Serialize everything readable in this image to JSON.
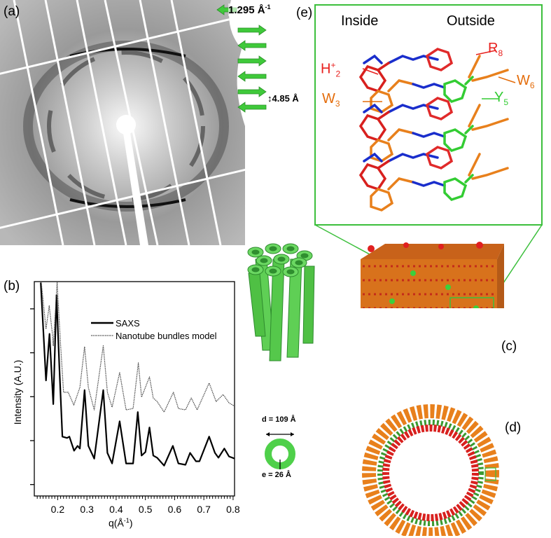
{
  "panels": {
    "a": {
      "label": "(a)",
      "spacing_label_1": "1.295 Å",
      "spacing_label_1_sup": "-1",
      "spacing_label_2": "4.85 Å"
    },
    "b": {
      "label": "(b)"
    },
    "c": {
      "label": "(c)"
    },
    "d": {
      "label": "(d)"
    },
    "e": {
      "label": "(e)",
      "inside": "Inside",
      "outside": "Outside",
      "residues": [
        {
          "name": "H",
          "sup": "+",
          "sub": "2",
          "color": "#e8201e"
        },
        {
          "name": "W",
          "sup": "",
          "sub": "3",
          "color": "#e46c0a"
        },
        {
          "name": "R",
          "sup": "",
          "sub": "8",
          "color": "#e8201e"
        },
        {
          "name": "W",
          "sup": "",
          "sub": "6",
          "color": "#e46c0a"
        },
        {
          "name": "Y",
          "sup": "",
          "sub": "5",
          "color": "#33cc33"
        }
      ]
    },
    "tube": {
      "diameter_label": "d = 109 Å",
      "thickness_label": "e = 26 Å"
    }
  },
  "colors": {
    "green": "#4fd04a",
    "frame_green": "#3cbf3c",
    "orange": "#e8801c",
    "red": "#d8201e",
    "blue": "#1a2ecc"
  },
  "chart_data": {
    "type": "line",
    "xlabel": "q(Å",
    "xlabel_sup": "-1",
    "xlabel_close": ")",
    "ylabel": "Intensity (A.U.)",
    "xlim": [
      0.12,
      0.805
    ],
    "ylim": [
      0.74,
      5.62
    ],
    "xticks": [
      0.2,
      0.3,
      0.4,
      0.5,
      0.6,
      0.7,
      0.8
    ],
    "xtick_labels": [
      "0.2",
      "0.3",
      "0.4",
      "0.5",
      "0.6",
      "0.7",
      "0.8"
    ],
    "yticks_unlabeled": [
      1,
      2,
      3,
      4,
      5
    ],
    "legend_position": "top-right",
    "series": [
      {
        "name": "SAXS",
        "style": "solid",
        "x": [
          0.142,
          0.16,
          0.172,
          0.185,
          0.196,
          0.206,
          0.216,
          0.232,
          0.24,
          0.256,
          0.268,
          0.276,
          0.292,
          0.305,
          0.325,
          0.356,
          0.37,
          0.386,
          0.412,
          0.434,
          0.458,
          0.474,
          0.487,
          0.5,
          0.514,
          0.527,
          0.54,
          0.564,
          0.594,
          0.613,
          0.637,
          0.653,
          0.673,
          0.685,
          0.718,
          0.738,
          0.75,
          0.77,
          0.786,
          0.806
        ],
        "y": [
          5.6,
          3.37,
          4.43,
          2.83,
          5.31,
          3.63,
          2.09,
          2.06,
          2.09,
          1.77,
          1.88,
          1.82,
          3.15,
          1.88,
          1.59,
          3.15,
          1.72,
          1.48,
          2.44,
          1.48,
          1.48,
          2.65,
          1.66,
          1.74,
          2.3,
          1.66,
          1.61,
          1.43,
          1.88,
          1.48,
          1.45,
          1.72,
          1.53,
          1.53,
          2.09,
          1.72,
          1.61,
          1.82,
          1.64,
          1.59
        ]
      },
      {
        "name": "Nanotube bundles model",
        "style": "dotted",
        "x": [
          0.144,
          0.16,
          0.171,
          0.181,
          0.185,
          0.198,
          0.21,
          0.22,
          0.236,
          0.255,
          0.276,
          0.292,
          0.305,
          0.325,
          0.356,
          0.37,
          0.386,
          0.412,
          0.434,
          0.458,
          0.476,
          0.487,
          0.514,
          0.527,
          0.54,
          0.564,
          0.596,
          0.613,
          0.637,
          0.657,
          0.677,
          0.718,
          0.742,
          0.766,
          0.786,
          0.806
        ],
        "y": [
          5.6,
          4.54,
          5.07,
          4.48,
          4.16,
          5.6,
          4.16,
          3.1,
          3.1,
          2.81,
          3.21,
          4.14,
          3.21,
          2.7,
          4.16,
          3.1,
          2.76,
          3.55,
          2.7,
          2.73,
          3.77,
          2.99,
          3.45,
          2.97,
          2.89,
          2.65,
          3.1,
          2.73,
          2.7,
          2.97,
          2.7,
          3.31,
          2.89,
          3.05,
          2.86,
          2.78
        ]
      }
    ]
  }
}
